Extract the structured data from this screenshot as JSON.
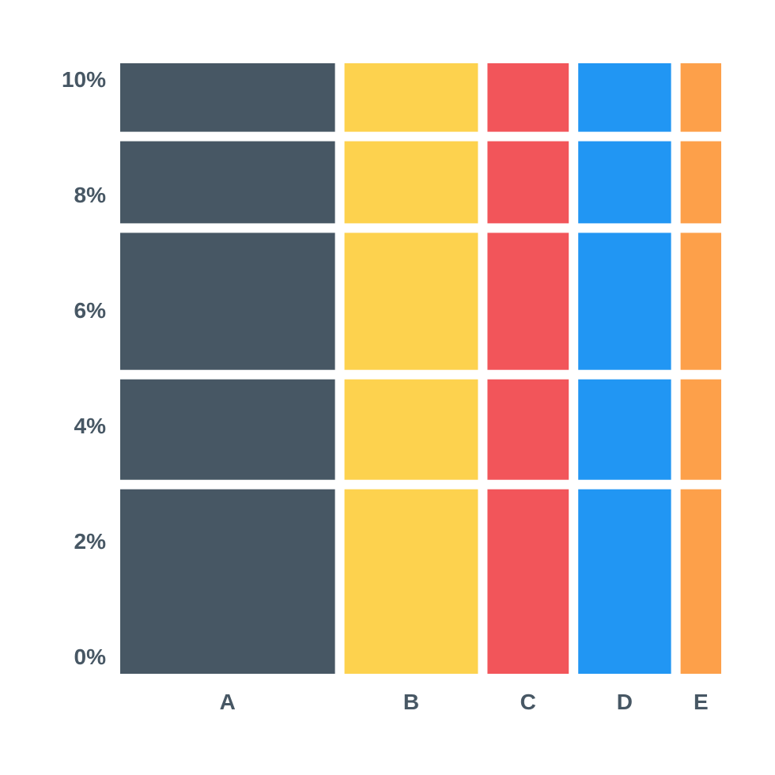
{
  "chart_data": {
    "type": "mosaic",
    "title": "",
    "xlabel": "",
    "ylabel": "",
    "categories": [
      "A",
      "B",
      "C",
      "D",
      "E"
    ],
    "column_widths": [
      37,
      23,
      14,
      16,
      7
    ],
    "y_ticks": [
      "0%",
      "2%",
      "4%",
      "6%",
      "8%",
      "10%"
    ],
    "ylim": [
      0,
      10
    ],
    "row_boundaries": [
      0,
      3.1,
      4.9,
      7.3,
      8.8,
      10
    ],
    "colors": {
      "A": "#475764",
      "B": "#fdd24e",
      "C": "#f2555a",
      "D": "#2196f3",
      "E": "#fda04a"
    },
    "grid": false,
    "legend": "none"
  }
}
